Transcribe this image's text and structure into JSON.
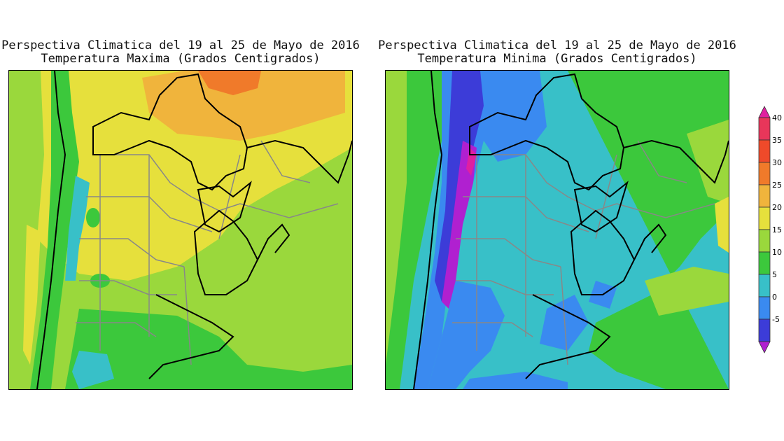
{
  "maps": [
    {
      "title_line1": "Perspectiva Climatica del 19 al 25 de Mayo de 2016",
      "title_line2": "Temperatura Maxima (Grados Centigrados)"
    },
    {
      "title_line1": "Perspectiva Climatica del 19 al 25 de Mayo de 2016",
      "title_line2": "Temperatura Minima (Grados Centigrados)"
    }
  ],
  "colorbar": {
    "ticks": [
      "40",
      "35",
      "30",
      "25",
      "20",
      "15",
      "10",
      "5",
      "0",
      "-5"
    ],
    "colors": {
      "40": "#e8365a",
      "35": "#ef4a2a",
      "30": "#f07a2a",
      "25": "#f0b43c",
      "20": "#e6e03c",
      "15": "#9ad83c",
      "10": "#3cc83c",
      "5": "#38c0c8",
      "0": "#3a8af0",
      "-5": "#3c3cd8",
      "min": "#b020d0",
      "max": "#e020a0"
    }
  }
}
